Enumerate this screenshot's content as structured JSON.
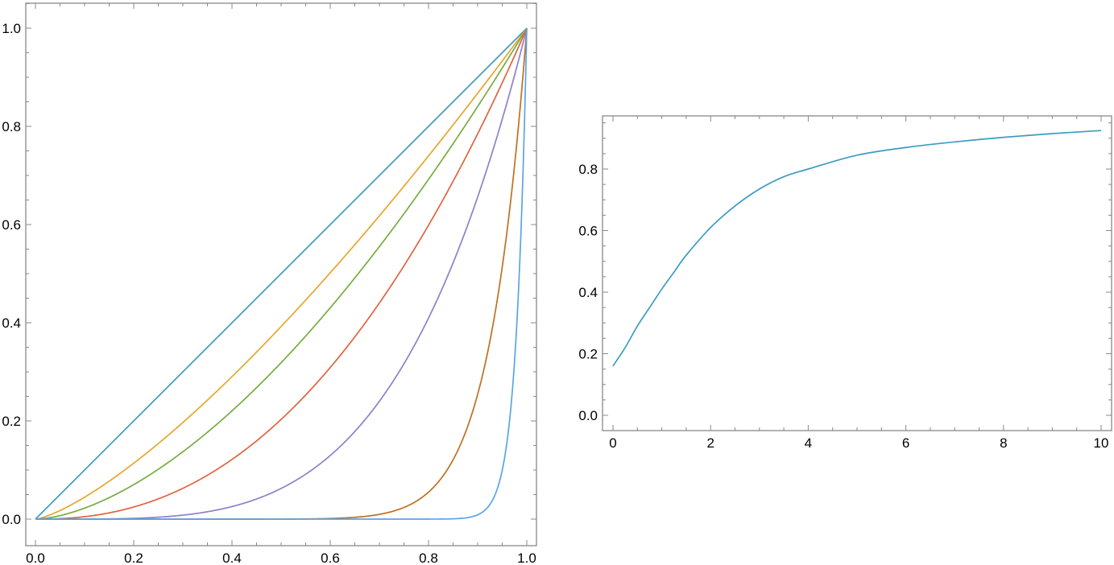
{
  "chart_data": [
    {
      "type": "line",
      "xlim": [
        0,
        1
      ],
      "ylim": [
        0,
        1
      ],
      "x_ticks": [
        "0.0",
        "0.2",
        "0.4",
        "0.6",
        "0.8",
        "1.0"
      ],
      "y_ticks": [
        "0.0",
        "0.2",
        "0.4",
        "0.6",
        "0.8",
        "1.0"
      ],
      "grid": false,
      "legend": "none",
      "series": [
        {
          "color": "#3e9bc1",
          "exponent": 1
        },
        {
          "color": "#e5a62c",
          "exponent": 1.35
        },
        {
          "color": "#77ac3f",
          "exponent": 1.65
        },
        {
          "color": "#e3623f",
          "exponent": 2.3
        },
        {
          "color": "#8f80c9",
          "exponent": 4
        },
        {
          "color": "#c0701f",
          "exponent": 13
        },
        {
          "color": "#5aa4e8",
          "exponent": 45
        }
      ]
    },
    {
      "type": "line",
      "xlim": [
        0,
        10
      ],
      "ylim": [
        0,
        0.93
      ],
      "x_ticks": [
        "0",
        "2",
        "4",
        "6",
        "8",
        "10"
      ],
      "y_ticks": [
        "0.0",
        "0.2",
        "0.4",
        "0.6",
        "0.8"
      ],
      "grid": false,
      "legend": "none",
      "series": [
        {
          "color": "#3e9bc1",
          "x": [
            0,
            0.25,
            0.5,
            0.75,
            1,
            1.25,
            1.5,
            2,
            2.5,
            3,
            3.5,
            4,
            5,
            6,
            7,
            8,
            9,
            10
          ],
          "y": [
            0.16,
            0.22,
            0.29,
            0.35,
            0.41,
            0.465,
            0.52,
            0.61,
            0.68,
            0.735,
            0.775,
            0.8,
            0.845,
            0.87,
            0.888,
            0.903,
            0.915,
            0.925
          ]
        }
      ]
    }
  ]
}
